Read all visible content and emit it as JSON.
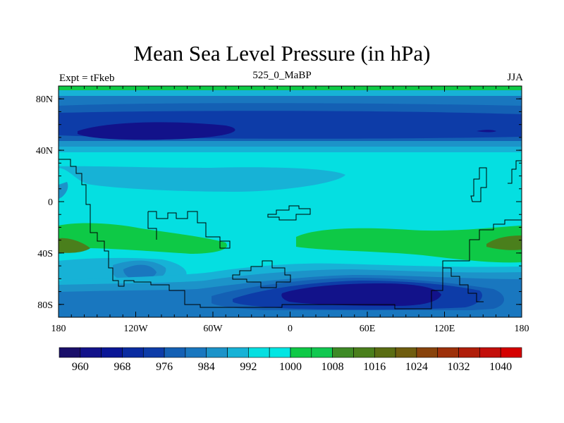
{
  "title": "Mean Sea Level Pressure (in hPa)",
  "left_label": "Expt = tFkeb",
  "center_label": "525_0_MaBP",
  "right_label": "JJA",
  "map": {
    "projection": "cylindrical-equidistant",
    "lon_range": [
      -180,
      180
    ],
    "lat_range": [
      -90,
      90
    ],
    "x_ticks": [
      {
        "value": -180,
        "label": "180"
      },
      {
        "value": -120,
        "label": "120W"
      },
      {
        "value": -60,
        "label": "60W"
      },
      {
        "value": 0,
        "label": "0"
      },
      {
        "value": 60,
        "label": "60E"
      },
      {
        "value": 120,
        "label": "120E"
      },
      {
        "value": 180,
        "label": "180"
      }
    ],
    "y_ticks": [
      {
        "value": 80,
        "label": "80N"
      },
      {
        "value": 40,
        "label": "40N"
      },
      {
        "value": 0,
        "label": "0"
      },
      {
        "value": -40,
        "label": "40S"
      },
      {
        "value": -80,
        "label": "80S"
      }
    ],
    "field_units": "hPa"
  },
  "colorbar": {
    "levels": [
      956,
      960,
      964,
      968,
      972,
      976,
      980,
      984,
      988,
      992,
      996,
      1000,
      1004,
      1008,
      1012,
      1016,
      1020,
      1024,
      1028,
      1032,
      1036,
      1040,
      1044
    ],
    "labels": [
      "960",
      "968",
      "976",
      "984",
      "992",
      "1000",
      "1008",
      "1016",
      "1024",
      "1032",
      "1040"
    ],
    "colors": [
      "#1a0f6a",
      "#12128a",
      "#0a1696",
      "#0a2ba0",
      "#0d3ca8",
      "#1460b4",
      "#1977bf",
      "#1c93c9",
      "#17b2d6",
      "#05dfe1",
      "#00e6e3",
      "#0ec946",
      "#11c850",
      "#3e8a26",
      "#4a7f1c",
      "#5a6d13",
      "#6f5d0f",
      "#88430c",
      "#9d300a",
      "#b01e0a",
      "#c30f0b",
      "#d50000"
    ]
  }
}
